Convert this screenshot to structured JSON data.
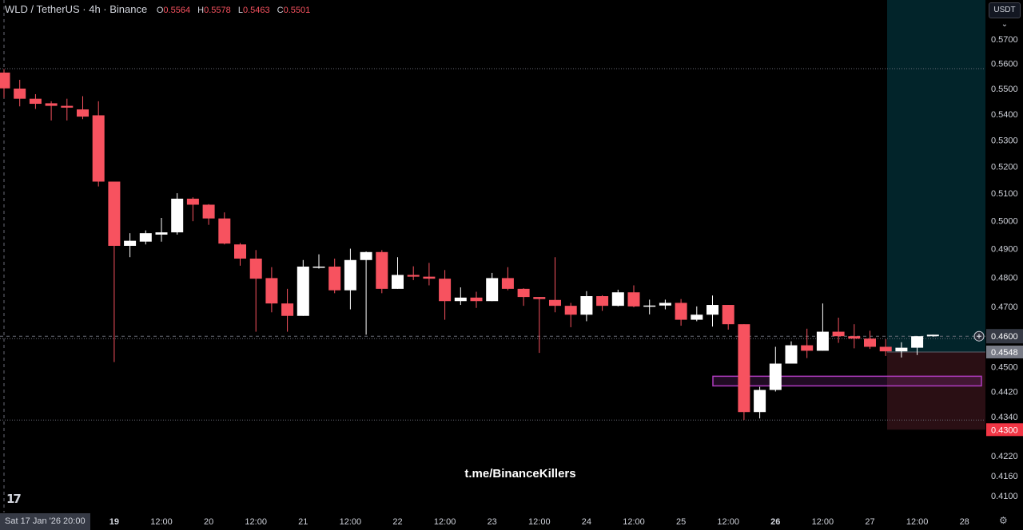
{
  "header": {
    "symbol": "WLD / TetherUS · 4h · Binance",
    "o_label": "O",
    "o": "0.5564",
    "h_label": "H",
    "h": "0.5578",
    "l_label": "L",
    "l": "0.5463",
    "c_label": "C",
    "c": "0.5501"
  },
  "currency_button": "USDT ⌄",
  "watermark": "t.me/BinanceKillers",
  "logo": "TV",
  "crosshair": {
    "time_label": "Sat 17 Jan '26  20:00",
    "price_label": "0.4600"
  },
  "colors": {
    "up": "#ffffff",
    "down": "#f7525f",
    "target_zone": "#02242a",
    "stop_zone": "#2a0f14",
    "box": "#b03cc0"
  },
  "icons": {
    "settings": "gear-icon",
    "add": "plus-circle-icon"
  },
  "chart_data": {
    "type": "candlestick",
    "interval": "4h",
    "scale": "log",
    "ylim": [
      0.408,
      0.578
    ],
    "grid": false,
    "y_ticks": [
      "0.5700",
      "0.5600",
      "0.5500",
      "0.5400",
      "0.5300",
      "0.5200",
      "0.5100",
      "0.5000",
      "0.4900",
      "0.4800",
      "0.4700",
      "0.4600",
      "0.4500",
      "0.4420",
      "0.4340",
      "0.4220",
      "0.4160",
      "0.4100"
    ],
    "x_ticks": [
      {
        "label": "19",
        "bold": true
      },
      {
        "label": "12:00"
      },
      {
        "label": "20"
      },
      {
        "label": "12:00"
      },
      {
        "label": "21"
      },
      {
        "label": "12:00"
      },
      {
        "label": "22"
      },
      {
        "label": "12:00"
      },
      {
        "label": "23"
      },
      {
        "label": "12:00"
      },
      {
        "label": "24"
      },
      {
        "label": "12:00"
      },
      {
        "label": "25"
      },
      {
        "label": "12:00"
      },
      {
        "label": "26",
        "bold": true
      },
      {
        "label": "12:00"
      },
      {
        "label": "27"
      },
      {
        "label": "12:00"
      },
      {
        "label": "28"
      }
    ],
    "candles": [
      [
        0.5564,
        0.5578,
        0.5463,
        0.5501
      ],
      [
        0.55,
        0.5535,
        0.543,
        0.546
      ],
      [
        0.546,
        0.5478,
        0.542,
        0.544
      ],
      [
        0.5442,
        0.545,
        0.5375,
        0.5432
      ],
      [
        0.5432,
        0.546,
        0.5375,
        0.5425
      ],
      [
        0.5418,
        0.547,
        0.538,
        0.539
      ],
      [
        0.5395,
        0.545,
        0.5125,
        0.5143
      ],
      [
        0.5143,
        0.5143,
        0.4515,
        0.491
      ],
      [
        0.491,
        0.4955,
        0.487,
        0.4928
      ],
      [
        0.4925,
        0.4965,
        0.4915,
        0.4955
      ],
      [
        0.495,
        0.501,
        0.4925,
        0.4958
      ],
      [
        0.4958,
        0.51,
        0.495,
        0.508
      ],
      [
        0.508,
        0.5085,
        0.4998,
        0.5058
      ],
      [
        0.5058,
        0.506,
        0.4985,
        0.5008
      ],
      [
        0.5008,
        0.503,
        0.4915,
        0.4918
      ],
      [
        0.4915,
        0.492,
        0.484,
        0.4865
      ],
      [
        0.4865,
        0.4895,
        0.4615,
        0.4795
      ],
      [
        0.4797,
        0.4835,
        0.468,
        0.471
      ],
      [
        0.471,
        0.476,
        0.4615,
        0.4668
      ],
      [
        0.4668,
        0.486,
        0.4668,
        0.4837
      ],
      [
        0.4834,
        0.488,
        0.483,
        0.4837
      ],
      [
        0.4837,
        0.4865,
        0.4745,
        0.4755
      ],
      [
        0.4755,
        0.49,
        0.469,
        0.486
      ],
      [
        0.486,
        0.489,
        0.4605,
        0.4888
      ],
      [
        0.4888,
        0.4895,
        0.4745,
        0.476
      ],
      [
        0.476,
        0.487,
        0.476,
        0.4808
      ],
      [
        0.4808,
        0.4838,
        0.479,
        0.4802
      ],
      [
        0.4802,
        0.485,
        0.4772,
        0.4795
      ],
      [
        0.4795,
        0.4825,
        0.4655,
        0.4718
      ],
      [
        0.4718,
        0.4765,
        0.4705,
        0.473
      ],
      [
        0.473,
        0.475,
        0.4695,
        0.4718
      ],
      [
        0.4718,
        0.4815,
        0.4718,
        0.4797
      ],
      [
        0.4797,
        0.4835,
        0.4755,
        0.476
      ],
      [
        0.476,
        0.4762,
        0.4702,
        0.4732
      ],
      [
        0.4732,
        0.4732,
        0.4545,
        0.4725
      ],
      [
        0.4722,
        0.487,
        0.468,
        0.4702
      ],
      [
        0.4702,
        0.4712,
        0.463,
        0.4672
      ],
      [
        0.4672,
        0.4752,
        0.465,
        0.4735
      ],
      [
        0.4735,
        0.4738,
        0.4685,
        0.4702
      ],
      [
        0.4702,
        0.4757,
        0.47,
        0.4748
      ],
      [
        0.4748,
        0.4772,
        0.4697,
        0.47
      ],
      [
        0.47,
        0.4723,
        0.4673,
        0.4703
      ],
      [
        0.4703,
        0.4723,
        0.469,
        0.4712
      ],
      [
        0.4712,
        0.4725,
        0.4635,
        0.4655
      ],
      [
        0.4655,
        0.47,
        0.465,
        0.4672
      ],
      [
        0.4672,
        0.4737,
        0.4632,
        0.4705
      ],
      [
        0.4705,
        0.4705,
        0.4622,
        0.464
      ],
      [
        0.464,
        0.464,
        0.433,
        0.4355
      ],
      [
        0.4355,
        0.4435,
        0.4335,
        0.4425
      ],
      [
        0.4425,
        0.4565,
        0.442,
        0.451
      ],
      [
        0.451,
        0.4583,
        0.451,
        0.457
      ],
      [
        0.457,
        0.4625,
        0.4528,
        0.4552
      ],
      [
        0.4552,
        0.471,
        0.4552,
        0.4615
      ],
      [
        0.4615,
        0.4662,
        0.4578,
        0.46
      ],
      [
        0.46,
        0.464,
        0.456,
        0.4592
      ],
      [
        0.4592,
        0.4618,
        0.4558,
        0.4565
      ],
      [
        0.4565,
        0.459,
        0.4535,
        0.455
      ],
      [
        0.455,
        0.458,
        0.453,
        0.4562
      ],
      [
        0.4562,
        0.46,
        0.4538,
        0.46
      ],
      [
        0.46,
        0.4605,
        0.4598,
        0.4605
      ]
    ],
    "horizontal_lines": [
      0.558,
      0.4592,
      0.433
    ],
    "position": {
      "type": "long",
      "entry": 0.4548,
      "entry_label": "0.4548",
      "stop": 0.43,
      "stop_label": "0.4300"
    },
    "zone_box": {
      "top": 0.4469,
      "bottom": 0.4438
    }
  }
}
